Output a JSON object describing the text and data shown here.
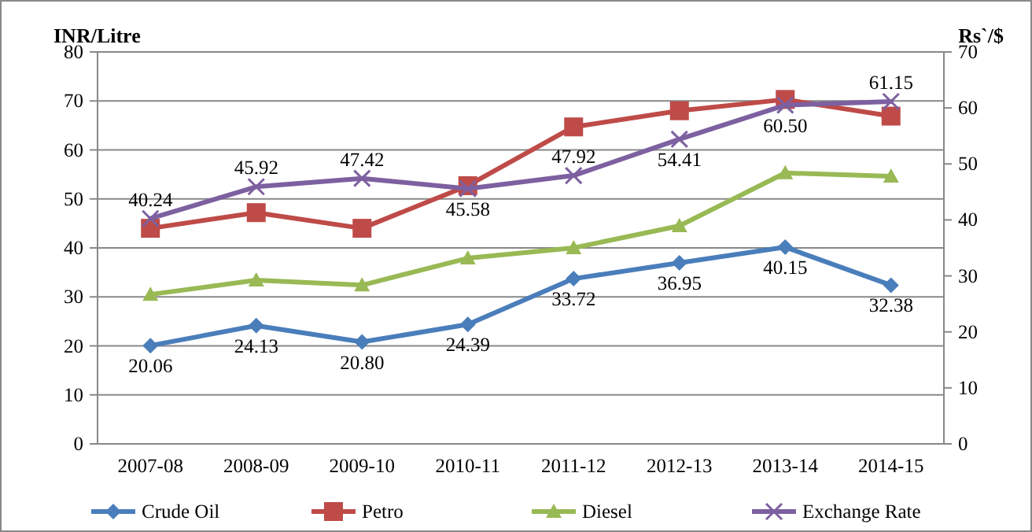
{
  "chart_data": {
    "type": "line",
    "ylabel": "INR/Litre",
    "y2label": "Rs`/$",
    "categories": [
      "2007-08",
      "2008-09",
      "2009-10",
      "2010-11",
      "2011-12",
      "2012-13",
      "2013-14",
      "2014-15"
    ],
    "series": [
      {
        "name": "Crude Oil",
        "color": "#4a7ebb",
        "marker": "diamond",
        "values": [
          20.06,
          24.13,
          20.8,
          24.39,
          33.72,
          36.95,
          40.15,
          32.38
        ],
        "value_labels": [
          "20.06",
          "24.13",
          "20.80",
          "24.39",
          "33.72",
          "36.95",
          "40.15",
          "32.38"
        ]
      },
      {
        "name": "Petro",
        "color": "#be4b48",
        "marker": "square",
        "values": [
          44,
          47.2,
          44,
          52.7,
          64.7,
          68,
          70.3,
          66.9
        ]
      },
      {
        "name": "Diesel",
        "color": "#98b954",
        "marker": "triangle",
        "values": [
          30.5,
          33.4,
          32.4,
          37.9,
          40,
          44.5,
          55.3,
          54.6
        ]
      },
      {
        "name": "Exchange Rate",
        "color": "#7d60a0",
        "marker": "cross",
        "axis": "y2",
        "values": [
          40.24,
          45.92,
          47.42,
          45.58,
          47.92,
          54.41,
          60.5,
          61.15
        ],
        "value_labels": [
          "40.24",
          "45.92",
          "47.42",
          "45.58",
          "47.92",
          "54.41",
          "60.50",
          "61.15"
        ]
      }
    ],
    "ylim": [
      0,
      80
    ],
    "yticks": [
      0,
      10,
      20,
      30,
      40,
      50,
      60,
      70,
      80
    ],
    "y2lim": [
      0,
      70
    ],
    "y2ticks": [
      0,
      10,
      20,
      30,
      40,
      50,
      60,
      70
    ],
    "grid": "y",
    "legend": "bottom",
    "line_style": "solid"
  }
}
